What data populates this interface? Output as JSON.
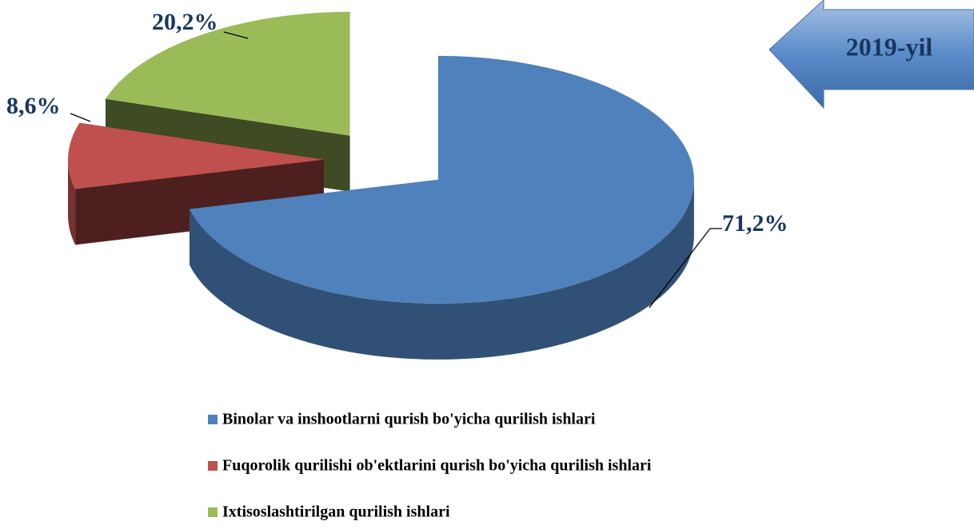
{
  "chart_data": {
    "type": "pie",
    "annotation": "2019-yil",
    "categories": [
      "Binolar va inshootlarni qurish bo'yicha qurilish ishlari",
      "Fuqorolik qurilishi ob'ektlarini qurish bo'yicha qurilish ishlari",
      "Ixtisoslashtirilgan qurilish ishlari"
    ],
    "values": [
      71.2,
      8.6,
      20.2
    ],
    "value_labels": [
      "71,2%",
      "8,6%",
      "20,2%"
    ],
    "colors": [
      "#4f81bd",
      "#c0504d",
      "#9bbb59"
    ],
    "legend": "bottom"
  }
}
